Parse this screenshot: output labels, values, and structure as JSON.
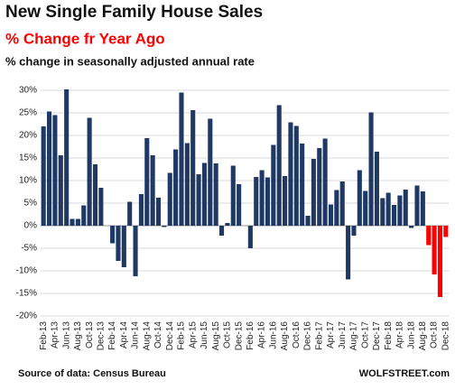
{
  "chart_data": {
    "type": "bar",
    "title": "New Single Family House Sales",
    "subtitle": "% Change fr Year Ago",
    "annotation": "% change in seasonally adjusted annual rate",
    "source": "Source of data: Census Bureau",
    "credit": "WOLFSTREET.com",
    "categories": [
      "Feb-13",
      null,
      "Apr-13",
      null,
      "Jun-13",
      null,
      "Aug-13",
      null,
      "Oct-13",
      null,
      "Dec-13",
      null,
      "Feb-14",
      null,
      "Apr-14",
      null,
      "Jun-14",
      null,
      "Aug-14",
      null,
      "Oct-14",
      null,
      "Dec-14",
      null,
      "Feb-15",
      null,
      "Apr-15",
      null,
      "Jun-15",
      null,
      "Aug-15",
      null,
      "Oct-15",
      null,
      "Dec-15",
      null,
      "Feb-16",
      null,
      "Apr-16",
      null,
      "Jun-16",
      null,
      "Aug-16",
      null,
      "Oct-16",
      null,
      "Dec-16",
      null,
      "Feb-17",
      null,
      "Apr-17",
      null,
      "Jun-17",
      null,
      "Aug-17",
      null,
      "Oct-17",
      null,
      "Dec-17",
      null,
      "Feb-18",
      null,
      "Apr-18",
      null,
      "Jun-18",
      null,
      "Aug-18",
      null,
      "Oct-18",
      null,
      "Dec-18"
    ],
    "values": [
      22,
      25.3,
      24.5,
      15.6,
      30.2,
      1.5,
      1.5,
      4.5,
      23.9,
      13.6,
      8.4,
      0,
      -3.9,
      -7.8,
      -9.2,
      5.3,
      -11.2,
      7.0,
      19.4,
      15.6,
      6.2,
      -0.3,
      11.7,
      16.9,
      29.5,
      18.3,
      25.6,
      11.4,
      13.9,
      23.7,
      13.8,
      -2.2,
      0.6,
      13.3,
      9.2,
      0,
      -5,
      10.8,
      12.3,
      10.7,
      17.9,
      26.7,
      11,
      22.9,
      22.1,
      18.2,
      2.2,
      14.8,
      17.2,
      19.3,
      4.7,
      7.9,
      9.8,
      -11.9,
      -2.2,
      12.3,
      7.7,
      25.1,
      16.4,
      6.1,
      7.3,
      4.6,
      6.7,
      8.0,
      -0.5,
      8.9,
      7.6,
      -4.3,
      -10.8,
      -15.8,
      -2.5
    ],
    "colors": [
      "#1f3864",
      "#1f3864",
      "#1f3864",
      "#1f3864",
      "#1f3864",
      "#1f3864",
      "#1f3864",
      "#1f3864",
      "#1f3864",
      "#1f3864",
      "#1f3864",
      "#1f3864",
      "#1f3864",
      "#1f3864",
      "#1f3864",
      "#1f3864",
      "#1f3864",
      "#1f3864",
      "#1f3864",
      "#1f3864",
      "#1f3864",
      "#1f3864",
      "#1f3864",
      "#1f3864",
      "#1f3864",
      "#1f3864",
      "#1f3864",
      "#1f3864",
      "#1f3864",
      "#1f3864",
      "#1f3864",
      "#1f3864",
      "#1f3864",
      "#1f3864",
      "#1f3864",
      "#1f3864",
      "#1f3864",
      "#1f3864",
      "#1f3864",
      "#1f3864",
      "#1f3864",
      "#1f3864",
      "#1f3864",
      "#1f3864",
      "#1f3864",
      "#1f3864",
      "#1f3864",
      "#1f3864",
      "#1f3864",
      "#1f3864",
      "#1f3864",
      "#1f3864",
      "#1f3864",
      "#1f3864",
      "#1f3864",
      "#1f3864",
      "#1f3864",
      "#1f3864",
      "#1f3864",
      "#1f3864",
      "#1f3864",
      "#1f3864",
      "#1f3864",
      "#1f3864",
      "#1f3864",
      "#1f3864",
      "#1f3864",
      "#ff0000",
      "#ff0000",
      "#ff0000",
      "#ff0000"
    ],
    "ylim": [
      -20,
      30
    ],
    "yticks": [
      {
        "value": -20,
        "label": "-20%"
      },
      {
        "value": -15,
        "label": "-15%"
      },
      {
        "value": -10,
        "label": "-10%"
      },
      {
        "value": -5,
        "label": "-5%"
      },
      {
        "value": 0,
        "label": "0%"
      },
      {
        "value": 5,
        "label": "5%"
      },
      {
        "value": 10,
        "label": "10%"
      },
      {
        "value": 15,
        "label": "15%"
      },
      {
        "value": 20,
        "label": "20%"
      },
      {
        "value": 25,
        "label": "25%"
      },
      {
        "value": 30,
        "label": "30%"
      }
    ],
    "grid": true
  }
}
